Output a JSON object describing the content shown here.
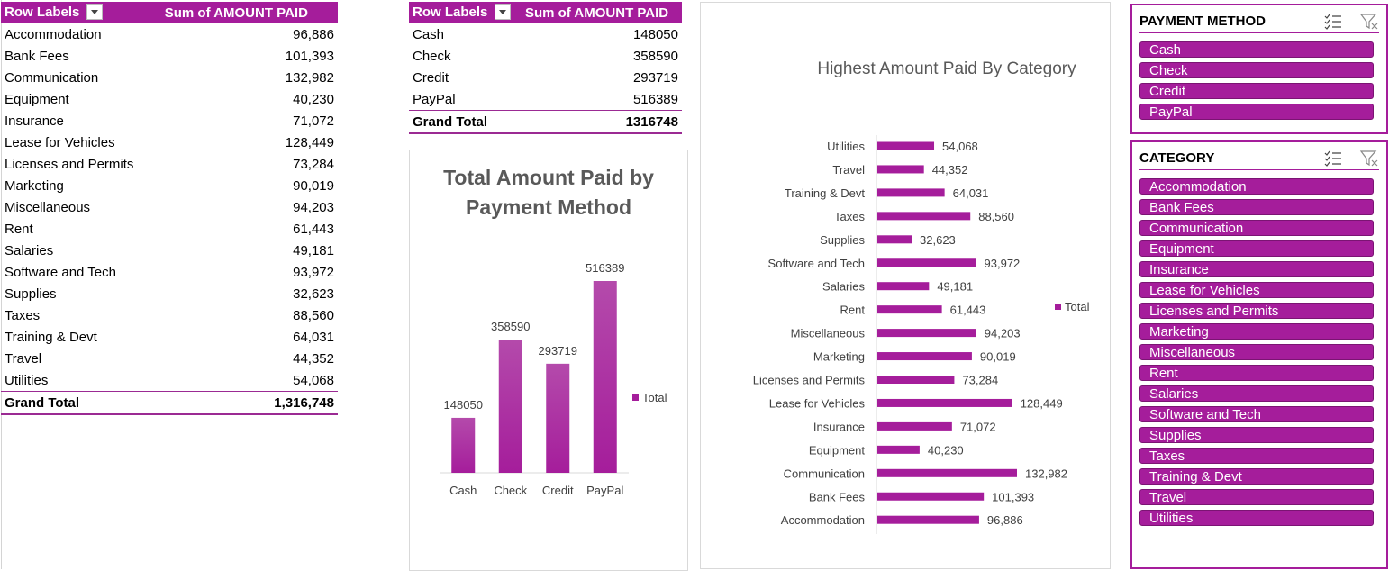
{
  "colors": {
    "accent": "#a51d9b",
    "bar": "#a51d9b",
    "title": "#595959"
  },
  "category_pivot": {
    "header_row_labels": "Row Labels",
    "header_values": "Sum of AMOUNT PAID",
    "rows": [
      {
        "label": "Accommodation",
        "value": "96,886"
      },
      {
        "label": "Bank Fees",
        "value": "101,393"
      },
      {
        "label": "Communication",
        "value": "132,982"
      },
      {
        "label": "Equipment",
        "value": "40,230"
      },
      {
        "label": "Insurance",
        "value": "71,072"
      },
      {
        "label": "Lease for Vehicles",
        "value": "128,449"
      },
      {
        "label": "Licenses and Permits",
        "value": "73,284"
      },
      {
        "label": "Marketing",
        "value": "90,019"
      },
      {
        "label": "Miscellaneous",
        "value": "94,203"
      },
      {
        "label": "Rent",
        "value": "61,443"
      },
      {
        "label": "Salaries",
        "value": "49,181"
      },
      {
        "label": "Software and Tech",
        "value": "93,972"
      },
      {
        "label": "Supplies",
        "value": "32,623"
      },
      {
        "label": "Taxes",
        "value": "88,560"
      },
      {
        "label": "Training & Devt",
        "value": "64,031"
      },
      {
        "label": "Travel",
        "value": "44,352"
      },
      {
        "label": "Utilities",
        "value": "54,068"
      }
    ],
    "total_label": "Grand Total",
    "total_value": "1,316,748"
  },
  "method_pivot": {
    "header_row_labels": "Row Labels",
    "header_values": "Sum of AMOUNT PAID",
    "rows": [
      {
        "label": "Cash",
        "value": "148050"
      },
      {
        "label": "Check",
        "value": "358590"
      },
      {
        "label": "Credit",
        "value": "293719"
      },
      {
        "label": "PayPal",
        "value": "516389"
      }
    ],
    "total_label": "Grand Total",
    "total_value": "1316748"
  },
  "chart_data": [
    {
      "type": "bar",
      "title": "Total Amount Paid by Payment Method",
      "title_lines": [
        "Total Amount Paid by",
        "Payment Method"
      ],
      "categories": [
        "Cash",
        "Check",
        "Credit",
        "PayPal"
      ],
      "values": [
        148050,
        358590,
        293719,
        516389
      ],
      "data_labels": [
        "148050",
        "358590",
        "293719",
        "516389"
      ],
      "series": [
        {
          "name": "Total",
          "values": [
            148050,
            358590,
            293719,
            516389
          ]
        }
      ],
      "ylim": [
        0,
        600000
      ],
      "legend": "right",
      "grid": false
    },
    {
      "type": "bar",
      "orientation": "horizontal",
      "title": "Highest Amount Paid By Category",
      "categories": [
        "Utilities",
        "Travel",
        "Training & Devt",
        "Taxes",
        "Supplies",
        "Software and Tech",
        "Salaries",
        "Rent",
        "Miscellaneous",
        "Marketing",
        "Licenses and Permits",
        "Lease for Vehicles",
        "Insurance",
        "Equipment",
        "Communication",
        "Bank Fees",
        "Accommodation"
      ],
      "values": [
        54068,
        44352,
        64031,
        88560,
        32623,
        93972,
        49181,
        61443,
        94203,
        90019,
        73284,
        128449,
        71072,
        40230,
        132982,
        101393,
        96886
      ],
      "data_labels": [
        "54,068",
        "44,352",
        "64,031",
        "88,560",
        "32,623",
        "93,972",
        "49,181",
        "61,443",
        "94,203",
        "90,019",
        "73,284",
        "128,449",
        "71,072",
        "40,230",
        "132,982",
        "101,393",
        "96,886"
      ],
      "series": [
        {
          "name": "Total"
        }
      ],
      "xlim": [
        0,
        140000
      ],
      "legend": "right",
      "grid": false
    }
  ],
  "payment_slicer": {
    "title": "PAYMENT METHOD",
    "items": [
      "Cash",
      "Check",
      "Credit",
      "PayPal"
    ],
    "icons": [
      "multi-select-icon",
      "clear-filter-icon"
    ]
  },
  "category_slicer": {
    "title": "CATEGORY",
    "items": [
      "Accommodation",
      "Bank Fees",
      "Communication",
      "Equipment",
      "Insurance",
      "Lease for Vehicles",
      "Licenses and Permits",
      "Marketing",
      "Miscellaneous",
      "Rent",
      "Salaries",
      "Software and Tech",
      "Supplies",
      "Taxes",
      "Training & Devt",
      "Travel",
      "Utilities"
    ],
    "icons": [
      "multi-select-icon",
      "clear-filter-icon"
    ]
  }
}
